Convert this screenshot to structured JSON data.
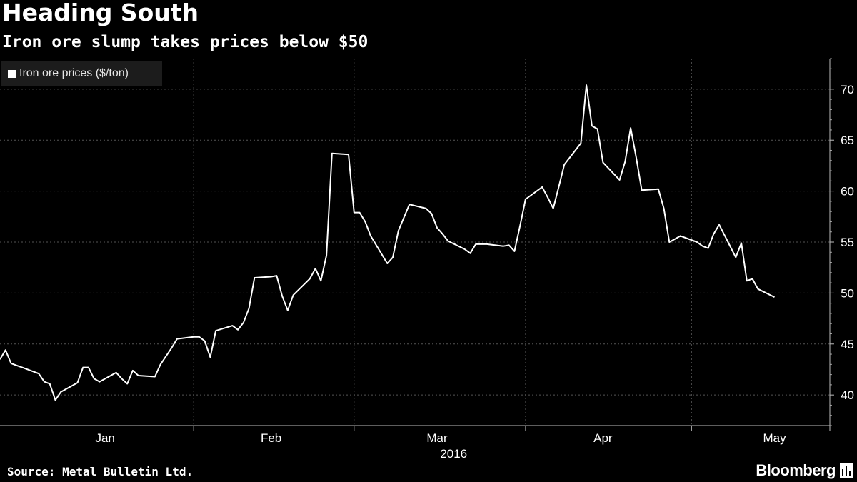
{
  "title": "Heading South",
  "subtitle": "Iron ore slump takes prices below $50",
  "legend": {
    "label": "Iron ore prices ($/ton)"
  },
  "source": "Source: Metal Bulletin Ltd.",
  "brand": "Bloomberg",
  "colors": {
    "background": "#000000",
    "line": "#ffffff",
    "grid": "#555555",
    "legend_bg": "#1c1c1c"
  },
  "chart_data": {
    "type": "line",
    "title": "Heading South",
    "subtitle": "Iron ore slump takes prices below $50",
    "xlabel": "2016",
    "ylabel": "",
    "ylim": [
      37,
      73
    ],
    "yticks": [
      40,
      45,
      50,
      55,
      60,
      65,
      70
    ],
    "xlim": [
      "2015-12-28",
      "2016-05-26"
    ],
    "xticks": [
      {
        "label": "Jan",
        "date": "2016-01-16"
      },
      {
        "label": "Feb",
        "date": "2016-02-15"
      },
      {
        "label": "Mar",
        "date": "2016-03-16"
      },
      {
        "label": "Apr",
        "date": "2016-04-15"
      },
      {
        "label": "May",
        "date": "2016-05-16"
      }
    ],
    "month_boundaries": [
      "2016-02-01",
      "2016-03-01",
      "2016-04-01",
      "2016-05-01"
    ],
    "grid": true,
    "legend_position": "top-left",
    "y_axis_position": "right",
    "series": [
      {
        "name": "Iron ore prices ($/ton)",
        "points": [
          [
            "2015-12-28",
            43.5
          ],
          [
            "2015-12-29",
            44.4
          ],
          [
            "2015-12-30",
            43.1
          ],
          [
            "2015-12-31",
            42.9
          ],
          [
            "2016-01-01",
            42.7
          ],
          [
            "2016-01-04",
            42.1
          ],
          [
            "2016-01-05",
            41.3
          ],
          [
            "2016-01-06",
            41.1
          ],
          [
            "2016-01-07",
            39.5
          ],
          [
            "2016-01-08",
            40.3
          ],
          [
            "2016-01-11",
            41.2
          ],
          [
            "2016-01-12",
            42.7
          ],
          [
            "2016-01-13",
            42.7
          ],
          [
            "2016-01-14",
            41.6
          ],
          [
            "2016-01-15",
            41.3
          ],
          [
            "2016-01-18",
            42.2
          ],
          [
            "2016-01-19",
            41.6
          ],
          [
            "2016-01-20",
            41.1
          ],
          [
            "2016-01-21",
            42.4
          ],
          [
            "2016-01-22",
            41.9
          ],
          [
            "2016-01-25",
            41.8
          ],
          [
            "2016-01-26",
            43.0
          ],
          [
            "2016-01-27",
            43.8
          ],
          [
            "2016-01-28",
            44.6
          ],
          [
            "2016-01-29",
            45.5
          ],
          [
            "2016-02-01",
            45.7
          ],
          [
            "2016-02-02",
            45.7
          ],
          [
            "2016-02-03",
            45.3
          ],
          [
            "2016-02-04",
            43.7
          ],
          [
            "2016-02-05",
            46.3
          ],
          [
            "2016-02-08",
            46.8
          ],
          [
            "2016-02-09",
            46.4
          ],
          [
            "2016-02-10",
            47.1
          ],
          [
            "2016-02-11",
            48.5
          ],
          [
            "2016-02-12",
            51.5
          ],
          [
            "2016-02-15",
            51.6
          ],
          [
            "2016-02-16",
            51.7
          ],
          [
            "2016-02-17",
            49.7
          ],
          [
            "2016-02-18",
            48.3
          ],
          [
            "2016-02-19",
            49.8
          ],
          [
            "2016-02-22",
            51.4
          ],
          [
            "2016-02-23",
            52.4
          ],
          [
            "2016-02-24",
            51.2
          ],
          [
            "2016-02-25",
            53.7
          ],
          [
            "2016-02-26",
            63.7
          ],
          [
            "2016-02-29",
            63.6
          ],
          [
            "2016-03-01",
            57.9
          ],
          [
            "2016-03-02",
            57.9
          ],
          [
            "2016-03-03",
            57.0
          ],
          [
            "2016-03-04",
            55.6
          ],
          [
            "2016-03-07",
            52.9
          ],
          [
            "2016-03-08",
            53.5
          ],
          [
            "2016-03-09",
            56.1
          ],
          [
            "2016-03-10",
            57.4
          ],
          [
            "2016-03-11",
            58.7
          ],
          [
            "2016-03-14",
            58.3
          ],
          [
            "2016-03-15",
            57.8
          ],
          [
            "2016-03-16",
            56.4
          ],
          [
            "2016-03-17",
            55.8
          ],
          [
            "2016-03-18",
            55.1
          ],
          [
            "2016-03-21",
            54.3
          ],
          [
            "2016-03-22",
            53.9
          ],
          [
            "2016-03-23",
            54.8
          ],
          [
            "2016-03-24",
            54.8
          ],
          [
            "2016-03-25",
            54.8
          ],
          [
            "2016-03-28",
            54.6
          ],
          [
            "2016-03-29",
            54.7
          ],
          [
            "2016-03-30",
            54.1
          ],
          [
            "2016-03-31",
            56.6
          ],
          [
            "2016-04-01",
            59.2
          ],
          [
            "2016-04-04",
            60.4
          ],
          [
            "2016-04-05",
            59.4
          ],
          [
            "2016-04-06",
            58.3
          ],
          [
            "2016-04-07",
            60.4
          ],
          [
            "2016-04-08",
            62.6
          ],
          [
            "2016-04-11",
            64.7
          ],
          [
            "2016-04-12",
            70.4
          ],
          [
            "2016-04-13",
            66.4
          ],
          [
            "2016-04-14",
            66.1
          ],
          [
            "2016-04-15",
            62.8
          ],
          [
            "2016-04-18",
            61.1
          ],
          [
            "2016-04-19",
            62.9
          ],
          [
            "2016-04-20",
            66.2
          ],
          [
            "2016-04-21",
            63.3
          ],
          [
            "2016-04-22",
            60.1
          ],
          [
            "2016-04-25",
            60.2
          ],
          [
            "2016-04-26",
            58.3
          ],
          [
            "2016-04-27",
            55.0
          ],
          [
            "2016-04-28",
            55.3
          ],
          [
            "2016-04-29",
            55.6
          ],
          [
            "2016-05-02",
            55.0
          ],
          [
            "2016-05-03",
            54.6
          ],
          [
            "2016-05-04",
            54.4
          ],
          [
            "2016-05-05",
            55.8
          ],
          [
            "2016-05-06",
            56.7
          ],
          [
            "2016-05-09",
            53.5
          ],
          [
            "2016-05-10",
            54.9
          ],
          [
            "2016-05-11",
            51.2
          ],
          [
            "2016-05-12",
            51.4
          ],
          [
            "2016-05-13",
            50.4
          ],
          [
            "2016-05-16",
            49.6
          ]
        ]
      }
    ]
  }
}
